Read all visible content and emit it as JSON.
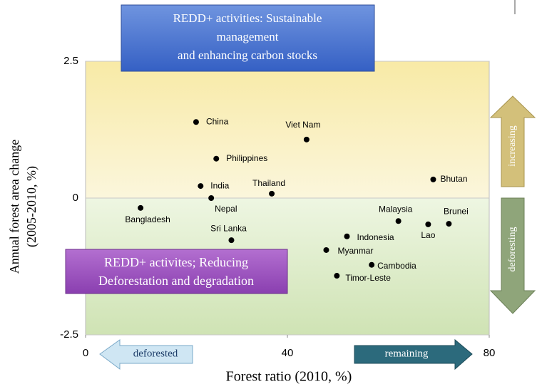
{
  "chart_data": {
    "type": "scatter",
    "xlabel": "Forest ratio (2010, %)",
    "ylabel": [
      "Annual forest area change",
      "(2005-2010, %)"
    ],
    "labels": [
      "China",
      "Viet Nam",
      "Philippines",
      "India",
      "Nepal",
      "Thailand",
      "Bhutan",
      "Bangladesh",
      "Malaysia",
      "Lao",
      "Brunei",
      "Sri Lanka",
      "Indonesia",
      "Myanmar",
      "Cambodia",
      "Timor-Leste"
    ],
    "x": [
      21.9,
      43.8,
      25.9,
      22.8,
      24.9,
      36.9,
      68.9,
      10.9,
      62.0,
      67.9,
      72.0,
      28.9,
      51.8,
      47.7,
      56.7,
      49.8
    ],
    "values": [
      1.39,
      1.07,
      0.72,
      0.22,
      0.0,
      0.08,
      0.34,
      -0.18,
      -0.42,
      -0.48,
      -0.47,
      -0.77,
      -0.7,
      -0.95,
      -1.22,
      -1.42
    ],
    "color": "#000000",
    "xlim": [
      0,
      80
    ],
    "xticks": [
      0,
      40,
      80
    ],
    "ylim": [
      -2.5,
      2.5
    ],
    "yticks": [
      2.5,
      0,
      -2.5
    ],
    "annotations": {
      "top_box": [
        "REDD+ activities: Sustainable",
        "management",
        "and enhancing carbon stocks"
      ],
      "bottom_box": [
        "REDD+ activites; Reducing",
        "Deforestation and degradation"
      ],
      "left_arrow": "deforested",
      "right_arrow": "remaining",
      "up_arrow": "increasing",
      "down_arrow": "deforesting"
    }
  }
}
